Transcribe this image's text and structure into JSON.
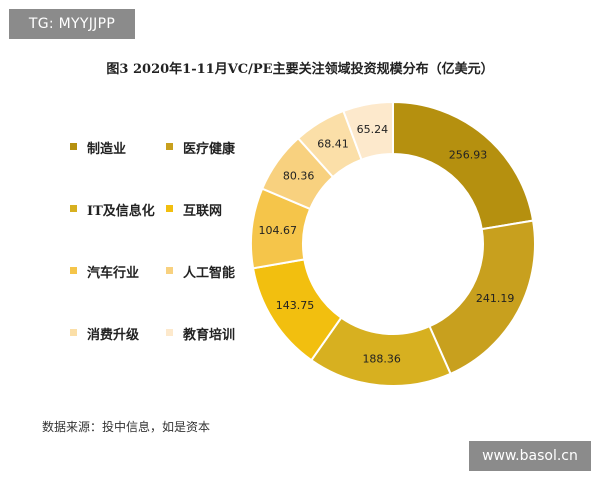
{
  "watermark_top_left": "TG: MYYJJPP",
  "watermark_bottom_right": "www.basol.cn",
  "source_note": "数据来源：投中信息，如是资本",
  "chart_data": {
    "type": "pie",
    "style": "donut",
    "title": "图3  2020年1-11月VC/PE主要关注领域投资规模分布（亿美元）",
    "legend_position": "left",
    "categories": [
      "制造业",
      "医疗健康",
      "IT及信息化",
      "互联网",
      "汽车行业",
      "人工智能",
      "消费升级",
      "教育培训"
    ],
    "values": [
      256.93,
      241.19,
      188.36,
      143.75,
      104.67,
      80.36,
      68.41,
      65.24
    ],
    "value_labels": [
      "256.93",
      "241.19",
      "188.36",
      "143.75",
      "104.67",
      "80.36",
      "68.41",
      "65.24"
    ],
    "colors": [
      "#b5900f",
      "#c8a01e",
      "#d7b020",
      "#f2bf0f",
      "#f5c54a",
      "#f8d17f",
      "#fbdfa8",
      "#fde9cc"
    ]
  }
}
